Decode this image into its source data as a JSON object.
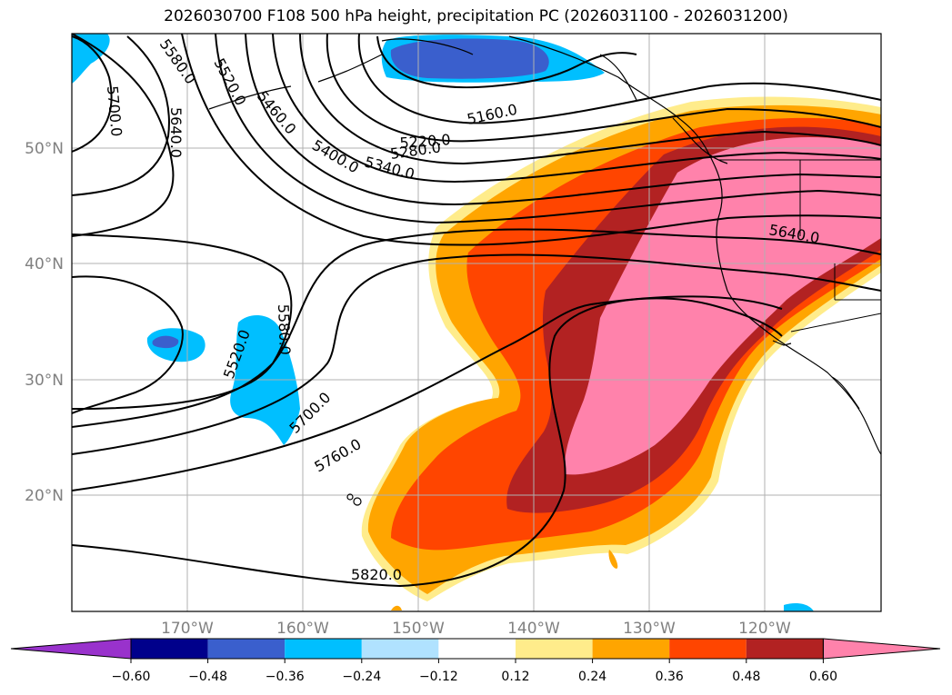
{
  "title": "2026030700 F108 500 hPa height, precipitation PC (2026031100 - 2026031200)",
  "map": {
    "lat_labels": [
      "50°N",
      "40°N",
      "30°N",
      "20°N"
    ],
    "lon_labels": [
      "170°W",
      "160°W",
      "150°W",
      "140°W",
      "130°W",
      "120°W"
    ],
    "contour_labels": [
      "5580.0",
      "5520.0",
      "5460.0",
      "5400.0",
      "5340.0",
      "5280.0",
      "5220.0",
      "5160.0",
      "5700.0",
      "5640.0",
      "5640.0",
      "5580.0",
      "5520.0",
      "5700.0",
      "5760.0",
      "5820.0"
    ]
  },
  "colorbar": {
    "colors": [
      "#9932cc",
      "#00008b",
      "#3a5fcd",
      "#00bfff",
      "#b0e2ff",
      "#ffffff",
      "#ffec8b",
      "#ffa500",
      "#ff4500",
      "#b22222",
      "#ff82ab"
    ],
    "tick_labels": [
      "−0.60",
      "−0.48",
      "−0.36",
      "−0.24",
      "−0.12",
      "0.12",
      "0.24",
      "0.36",
      "0.48",
      "0.60"
    ]
  }
}
